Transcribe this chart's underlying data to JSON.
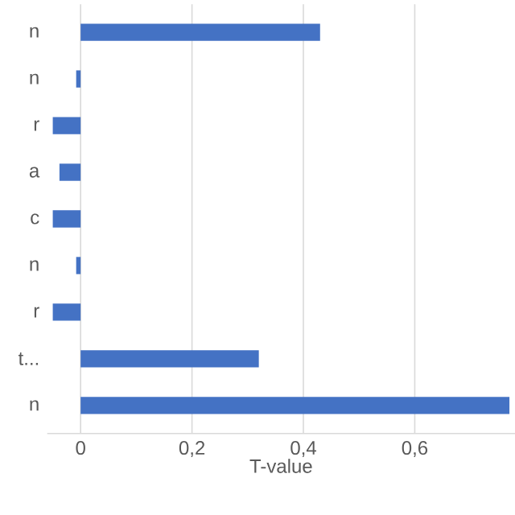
{
  "chart_data": {
    "type": "bar",
    "orientation": "horizontal",
    "xlabel": "T-value",
    "categories": [
      "n",
      "n",
      "r",
      "a",
      "c",
      "n",
      "r",
      "t...",
      "n"
    ],
    "values": [
      0.43,
      -0.008,
      -0.05,
      -0.038,
      -0.05,
      -0.008,
      -0.05,
      0.32,
      0.77
    ],
    "color": "#4472c4",
    "xlim": [
      -0.06,
      0.78
    ],
    "xticks": [
      0,
      {
        "value": 0.2,
        "label": "0,2"
      },
      {
        "value": 0.4,
        "label": "0,4"
      },
      {
        "value": 0.6,
        "label": "0,6"
      }
    ],
    "grid": "x"
  }
}
